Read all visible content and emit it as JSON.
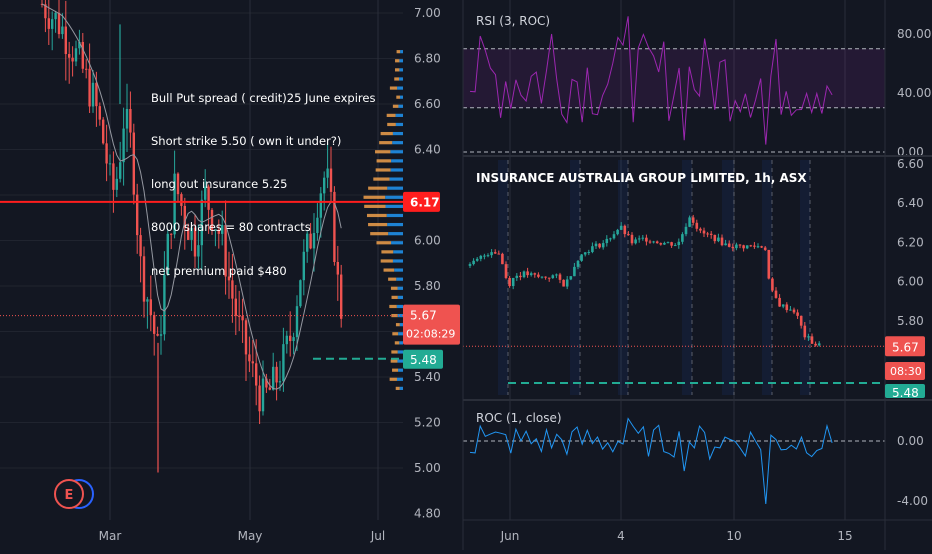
{
  "colors": {
    "background": "#131722",
    "up": "#26a69a",
    "down": "#ef5350",
    "axis_text": "#b2b5be",
    "grid": "#2a2e39",
    "rsi_line": "#9c27b0",
    "roc_line": "#2196f3",
    "ma_line": "#9598a1",
    "price_line": "#ff1e1e",
    "target_line": "#22ab94"
  },
  "annotation": {
    "lines": [
      "Bull Put spread ( credit)25 June expires",
      "Short strike 5.50 ( own it under?)",
      "long out insurance 5.25",
      "8000 shares = 80 contracts",
      "net premium paid $480"
    ]
  },
  "logo_icon": "circle-e-logo",
  "chart_data": [
    {
      "type": "candlestick",
      "title": "",
      "x_ticks": [
        "Mar",
        "May",
        "Jul"
      ],
      "y_ticks": [
        "7.00",
        "6.80",
        "6.60",
        "6.40",
        "6.17",
        "6.00",
        "5.80",
        "5.67",
        "5.48",
        "5.40",
        "5.20",
        "5.00",
        "4.80"
      ],
      "ylim": [
        4.8,
        7.0
      ],
      "current_price": "5.67",
      "countdown": "02:08:29",
      "horizontal_lines": [
        {
          "value": 6.17,
          "label": "6.17",
          "style": "solid"
        },
        {
          "value": 5.48,
          "label": "5.48",
          "style": "dashed"
        }
      ],
      "series": [
        {
          "name": "",
          "kind": "ohlc"
        },
        {
          "name": "",
          "kind": "moving-average"
        },
        {
          "name": "",
          "kind": "volume-profile"
        }
      ]
    },
    {
      "type": "line",
      "title": "RSI (3, ROC)",
      "y_ticks": [
        "80.00",
        "40.00",
        "0.00"
      ],
      "ylim": [
        0,
        100
      ],
      "bands": [
        70,
        30
      ]
    },
    {
      "type": "candlestick",
      "title": "INSURANCE AUSTRALIA GROUP LIMITED, 1h, ASX",
      "x_ticks": [
        "Jun",
        "4",
        "10",
        "15"
      ],
      "y_ticks": [
        "6.60",
        "6.40",
        "6.20",
        "6.00",
        "5.80",
        "5.67",
        "5.48"
      ],
      "ylim": [
        5.44,
        6.6
      ],
      "current_price": "5.67",
      "countdown": "08:30",
      "horizontal_lines": [
        {
          "value": 5.48,
          "label": "5.48",
          "style": "dashed"
        }
      ]
    },
    {
      "type": "line",
      "title": "ROC (1, close)",
      "y_ticks": [
        "0.00",
        "-4.00"
      ],
      "ylim": [
        -5,
        2
      ]
    }
  ]
}
